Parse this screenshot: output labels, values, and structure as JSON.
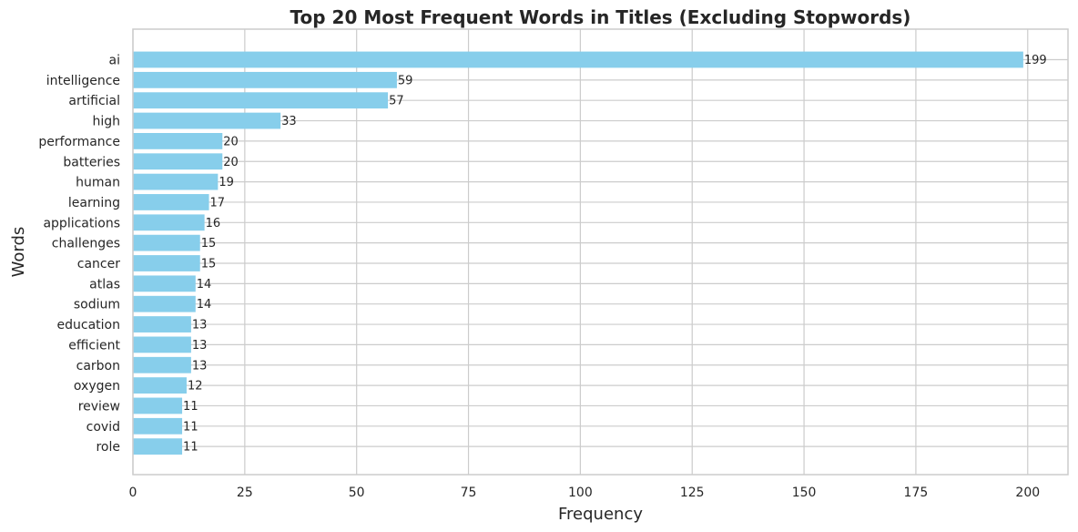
{
  "chart_data": {
    "type": "bar",
    "orientation": "horizontal",
    "title": "Top 20 Most Frequent Words in Titles (Excluding Stopwords)",
    "xlabel": "Frequency",
    "ylabel": "Words",
    "categories": [
      "ai",
      "intelligence",
      "artificial",
      "high",
      "performance",
      "batteries",
      "human",
      "learning",
      "applications",
      "challenges",
      "cancer",
      "atlas",
      "sodium",
      "education",
      "efficient",
      "carbon",
      "oxygen",
      "review",
      "covid",
      "role"
    ],
    "values": [
      199,
      59,
      57,
      33,
      20,
      20,
      19,
      17,
      16,
      15,
      15,
      14,
      14,
      13,
      13,
      13,
      12,
      11,
      11,
      11
    ],
    "xticks": [
      0,
      25,
      50,
      75,
      100,
      125,
      150,
      175,
      200
    ],
    "xlim": [
      0,
      209
    ],
    "grid": true,
    "bar_color": "#87ceeb",
    "data_labels": true
  }
}
